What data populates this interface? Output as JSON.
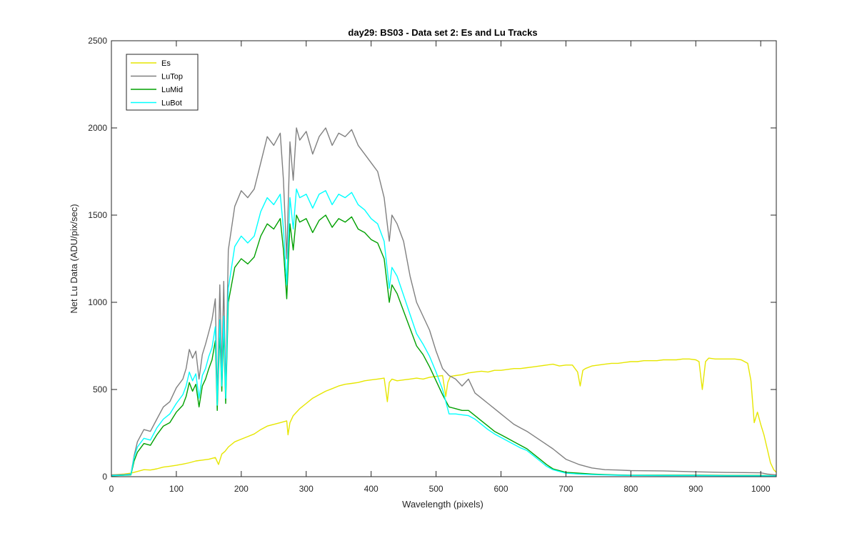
{
  "chart_data": {
    "type": "line",
    "title": "day29: BS03 - Data set 2: Es and Lu Tracks",
    "xlabel": "Wavelength (pixels)",
    "ylabel": "Net Lu Data (ADU/pix/sec)",
    "xlim": [
      0,
      1024
    ],
    "ylim": [
      0,
      2500
    ],
    "xticks": [
      0,
      100,
      200,
      300,
      400,
      500,
      600,
      700,
      800,
      900,
      1000
    ],
    "yticks": [
      0,
      500,
      1000,
      1500,
      2000,
      2500
    ],
    "grid": false,
    "legend_position": "top-left",
    "series": [
      {
        "name": "Es",
        "color": "#e6e600",
        "x": [
          0,
          20,
          30,
          40,
          50,
          60,
          70,
          80,
          90,
          100,
          110,
          120,
          130,
          140,
          150,
          160,
          165,
          170,
          175,
          180,
          190,
          200,
          210,
          220,
          230,
          240,
          250,
          260,
          270,
          272,
          275,
          280,
          290,
          300,
          310,
          320,
          330,
          340,
          350,
          360,
          370,
          380,
          390,
          400,
          410,
          420,
          425,
          428,
          432,
          440,
          450,
          460,
          470,
          480,
          490,
          500,
          510,
          515,
          518,
          522,
          530,
          540,
          550,
          560,
          570,
          580,
          590,
          600,
          610,
          620,
          630,
          640,
          650,
          660,
          670,
          680,
          690,
          700,
          710,
          718,
          722,
          726,
          730,
          740,
          750,
          760,
          770,
          780,
          790,
          800,
          810,
          820,
          830,
          840,
          850,
          860,
          870,
          880,
          890,
          900,
          905,
          910,
          915,
          920,
          930,
          940,
          950,
          960,
          970,
          980,
          985,
          990,
          995,
          1000,
          1005,
          1010,
          1015,
          1020,
          1024
        ],
        "y": [
          10,
          15,
          20,
          30,
          40,
          38,
          45,
          55,
          60,
          65,
          72,
          80,
          90,
          95,
          100,
          110,
          70,
          130,
          145,
          170,
          200,
          215,
          230,
          245,
          270,
          290,
          300,
          310,
          320,
          240,
          310,
          350,
          390,
          420,
          450,
          470,
          490,
          505,
          520,
          530,
          535,
          540,
          550,
          555,
          560,
          565,
          430,
          540,
          560,
          550,
          555,
          560,
          565,
          560,
          570,
          575,
          580,
          460,
          540,
          575,
          580,
          585,
          595,
          600,
          605,
          600,
          610,
          610,
          615,
          620,
          620,
          625,
          630,
          635,
          640,
          645,
          635,
          640,
          640,
          600,
          520,
          610,
          620,
          635,
          640,
          645,
          650,
          650,
          655,
          660,
          660,
          665,
          665,
          665,
          670,
          670,
          670,
          675,
          675,
          670,
          660,
          500,
          660,
          680,
          675,
          675,
          675,
          675,
          670,
          650,
          550,
          310,
          370,
          300,
          240,
          160,
          80,
          40,
          25
        ]
      },
      {
        "name": "LuTop",
        "color": "#808080",
        "x": [
          0,
          20,
          30,
          35,
          40,
          50,
          60,
          70,
          80,
          90,
          100,
          110,
          115,
          120,
          125,
          130,
          135,
          140,
          145,
          150,
          155,
          160,
          163,
          167,
          170,
          173,
          176,
          180,
          190,
          200,
          210,
          220,
          230,
          240,
          250,
          260,
          265,
          270,
          275,
          280,
          285,
          290,
          300,
          310,
          320,
          330,
          340,
          350,
          360,
          370,
          380,
          390,
          400,
          410,
          420,
          428,
          432,
          440,
          450,
          460,
          470,
          480,
          490,
          500,
          510,
          520,
          530,
          540,
          550,
          560,
          570,
          580,
          590,
          600,
          610,
          620,
          630,
          640,
          650,
          660,
          670,
          680,
          690,
          700,
          720,
          740,
          760,
          780,
          800,
          850,
          900,
          950,
          1000,
          1010,
          1024
        ],
        "y": [
          10,
          12,
          15,
          120,
          200,
          270,
          260,
          330,
          400,
          430,
          510,
          560,
          620,
          730,
          680,
          720,
          560,
          700,
          760,
          830,
          900,
          1020,
          440,
          1100,
          600,
          1120,
          480,
          1300,
          1550,
          1640,
          1600,
          1650,
          1800,
          1950,
          1900,
          1970,
          1700,
          1250,
          1920,
          1700,
          2000,
          1930,
          1980,
          1850,
          1950,
          2000,
          1900,
          1970,
          1950,
          1990,
          1900,
          1850,
          1800,
          1750,
          1600,
          1350,
          1500,
          1450,
          1350,
          1150,
          1000,
          920,
          840,
          720,
          620,
          580,
          560,
          520,
          560,
          480,
          450,
          420,
          390,
          360,
          330,
          300,
          280,
          260,
          235,
          210,
          185,
          160,
          130,
          100,
          70,
          50,
          40,
          38,
          35,
          33,
          28,
          24,
          22,
          15,
          10
        ]
      },
      {
        "name": "LuMid",
        "color": "#00a000",
        "x": [
          0,
          20,
          30,
          35,
          40,
          50,
          60,
          70,
          80,
          90,
          100,
          110,
          115,
          120,
          125,
          130,
          135,
          140,
          145,
          150,
          155,
          160,
          163,
          167,
          170,
          173,
          176,
          180,
          190,
          200,
          210,
          220,
          230,
          240,
          250,
          260,
          265,
          270,
          275,
          280,
          285,
          290,
          300,
          310,
          320,
          330,
          340,
          350,
          360,
          370,
          380,
          390,
          400,
          410,
          420,
          428,
          432,
          440,
          450,
          460,
          470,
          480,
          490,
          500,
          510,
          520,
          530,
          540,
          550,
          560,
          570,
          580,
          590,
          600,
          610,
          620,
          630,
          640,
          650,
          660,
          670,
          680,
          690,
          700,
          720,
          740,
          760,
          780,
          800,
          850,
          900,
          950,
          1000,
          1010,
          1024
        ],
        "y": [
          5,
          8,
          10,
          90,
          140,
          190,
          180,
          240,
          290,
          310,
          370,
          410,
          460,
          540,
          490,
          530,
          400,
          520,
          560,
          620,
          670,
          780,
          380,
          830,
          490,
          850,
          420,
          1000,
          1200,
          1250,
          1220,
          1260,
          1380,
          1450,
          1420,
          1480,
          1300,
          1020,
          1450,
          1300,
          1500,
          1460,
          1480,
          1400,
          1470,
          1500,
          1430,
          1480,
          1460,
          1490,
          1420,
          1400,
          1360,
          1340,
          1250,
          1000,
          1100,
          1050,
          950,
          850,
          750,
          700,
          630,
          550,
          470,
          400,
          390,
          380,
          380,
          350,
          320,
          290,
          260,
          240,
          220,
          200,
          180,
          160,
          130,
          100,
          70,
          45,
          35,
          25,
          20,
          15,
          12,
          10,
          8,
          8,
          8,
          7,
          7,
          6,
          5
        ]
      },
      {
        "name": "LuBot",
        "color": "#00ffff",
        "x": [
          0,
          20,
          30,
          35,
          40,
          50,
          60,
          70,
          80,
          90,
          100,
          110,
          115,
          120,
          125,
          130,
          135,
          140,
          145,
          150,
          155,
          160,
          163,
          167,
          170,
          173,
          176,
          180,
          190,
          200,
          210,
          220,
          230,
          240,
          250,
          260,
          265,
          270,
          275,
          280,
          285,
          290,
          300,
          310,
          320,
          330,
          340,
          350,
          360,
          370,
          380,
          390,
          400,
          410,
          420,
          428,
          432,
          440,
          450,
          460,
          470,
          480,
          490,
          500,
          510,
          520,
          530,
          540,
          550,
          560,
          570,
          580,
          590,
          600,
          610,
          620,
          630,
          640,
          650,
          660,
          670,
          680,
          690,
          700,
          720,
          740,
          760,
          780,
          800,
          850,
          900,
          950,
          1000,
          1010,
          1024
        ],
        "y": [
          6,
          9,
          12,
          110,
          170,
          220,
          210,
          280,
          330,
          360,
          420,
          470,
          520,
          600,
          550,
          590,
          450,
          580,
          620,
          690,
          740,
          860,
          410,
          900,
          520,
          920,
          450,
          1080,
          1320,
          1380,
          1340,
          1380,
          1520,
          1600,
          1560,
          1620,
          1420,
          1100,
          1600,
          1420,
          1650,
          1600,
          1620,
          1540,
          1620,
          1640,
          1560,
          1620,
          1600,
          1630,
          1560,
          1530,
          1480,
          1450,
          1350,
          1080,
          1200,
          1150,
          1040,
          930,
          820,
          760,
          690,
          600,
          500,
          360,
          360,
          355,
          350,
          330,
          300,
          270,
          245,
          225,
          205,
          185,
          165,
          150,
          120,
          90,
          60,
          40,
          30,
          20,
          15,
          12,
          10,
          8,
          7,
          6,
          6,
          5,
          5,
          5,
          4
        ]
      }
    ]
  }
}
